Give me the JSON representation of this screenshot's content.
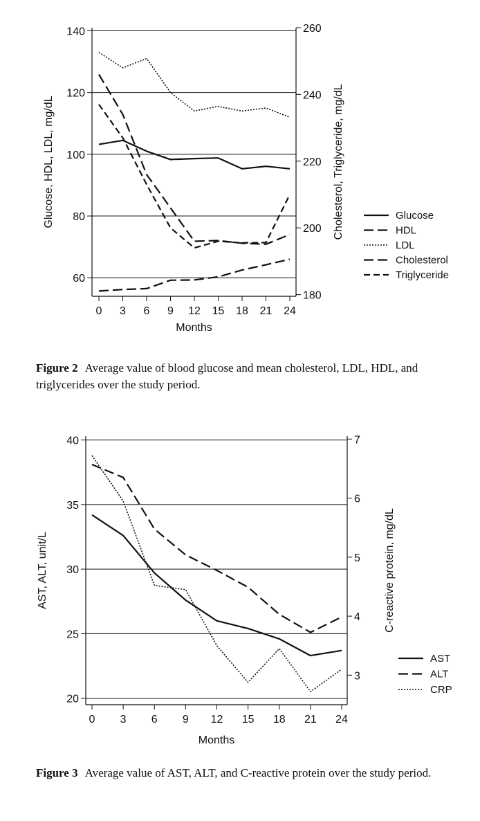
{
  "figures": [
    {
      "label": "Figure 2",
      "caption": "Average value of blood glucose and mean cholesterol, LDL, HDL, and triglycerides over the study period."
    },
    {
      "label": "Figure 3",
      "caption": "Average value of AST, ALT, and C-reactive protein over the study period."
    }
  ],
  "chart_data": [
    {
      "type": "line",
      "title": "",
      "xlabel": "Months",
      "ylabel": "Glucose, HDL, LDL, mg/dL",
      "y2label": "Cholesterol, Triglyceride, mg/dL",
      "x": [
        0,
        3,
        6,
        9,
        12,
        15,
        18,
        21,
        24
      ],
      "xticks": [
        "0",
        "3",
        "6",
        "9",
        "12",
        "15",
        "18",
        "21",
        "24"
      ],
      "ylim": [
        54,
        141
      ],
      "yticks": [
        "60",
        "80",
        "100",
        "120",
        "140"
      ],
      "y2lim": [
        179.5,
        260
      ],
      "y2ticks": [
        "180",
        "200",
        "220",
        "240",
        "260"
      ],
      "grid": true,
      "legend_position": "right",
      "series": [
        {
          "name": "Glucose",
          "axis": "left",
          "dash": "solid",
          "values": [
            103.2,
            104.5,
            101,
            98.3,
            98.6,
            98.8,
            95.3,
            96.1,
            95.3
          ]
        },
        {
          "name": "HDL",
          "axis": "left",
          "dash": "long-dash",
          "values": [
            55.7,
            56.2,
            56.5,
            59.2,
            59.3,
            60.3,
            62.5,
            64.2,
            66
          ]
        },
        {
          "name": "LDL",
          "axis": "left",
          "dash": "dotted",
          "values": [
            133,
            128,
            131,
            120,
            114,
            115.5,
            114,
            115,
            112
          ]
        },
        {
          "name": "Cholesterol",
          "axis": "right",
          "dash": "long-dash",
          "values": [
            246,
            234,
            216,
            206,
            196,
            196.2,
            195.4,
            195.1,
            198
          ]
        },
        {
          "name": "Triglyceride",
          "axis": "right",
          "dash": "dash",
          "values": [
            237,
            227,
            213,
            200,
            194,
            196,
            195.5,
            195.6,
            210
          ]
        }
      ]
    },
    {
      "type": "line",
      "title": "",
      "xlabel": "Months",
      "ylabel": "AST, ALT, unit/L",
      "y2label": "C-reactive protein, mg/dL",
      "x": [
        0,
        3,
        6,
        9,
        12,
        15,
        18,
        21,
        24
      ],
      "xticks": [
        "0",
        "3",
        "6",
        "9",
        "12",
        "15",
        "18",
        "21",
        "24"
      ],
      "ylim": [
        19.5,
        40.3
      ],
      "yticks": [
        "20",
        "25",
        "30",
        "35",
        "40"
      ],
      "y2lim": [
        2.5,
        7.05
      ],
      "y2ticks": [
        "3",
        "4",
        "5",
        "6",
        "7"
      ],
      "grid": true,
      "legend_position": "right",
      "series": [
        {
          "name": "AST",
          "axis": "left",
          "dash": "solid",
          "values": [
            34.2,
            32.6,
            29.7,
            27.6,
            26,
            25.4,
            24.6,
            23.3,
            23.7
          ]
        },
        {
          "name": "ALT",
          "axis": "left",
          "dash": "long-dash",
          "values": [
            38.1,
            37.1,
            33.1,
            31.1,
            29.9,
            28.6,
            26.5,
            25.1,
            26.3
          ]
        },
        {
          "name": "CRP",
          "axis": "right",
          "dash": "dotted",
          "values": [
            6.72,
            5.95,
            4.52,
            4.45,
            3.5,
            2.88,
            3.45,
            2.72,
            3.1
          ]
        }
      ]
    }
  ]
}
